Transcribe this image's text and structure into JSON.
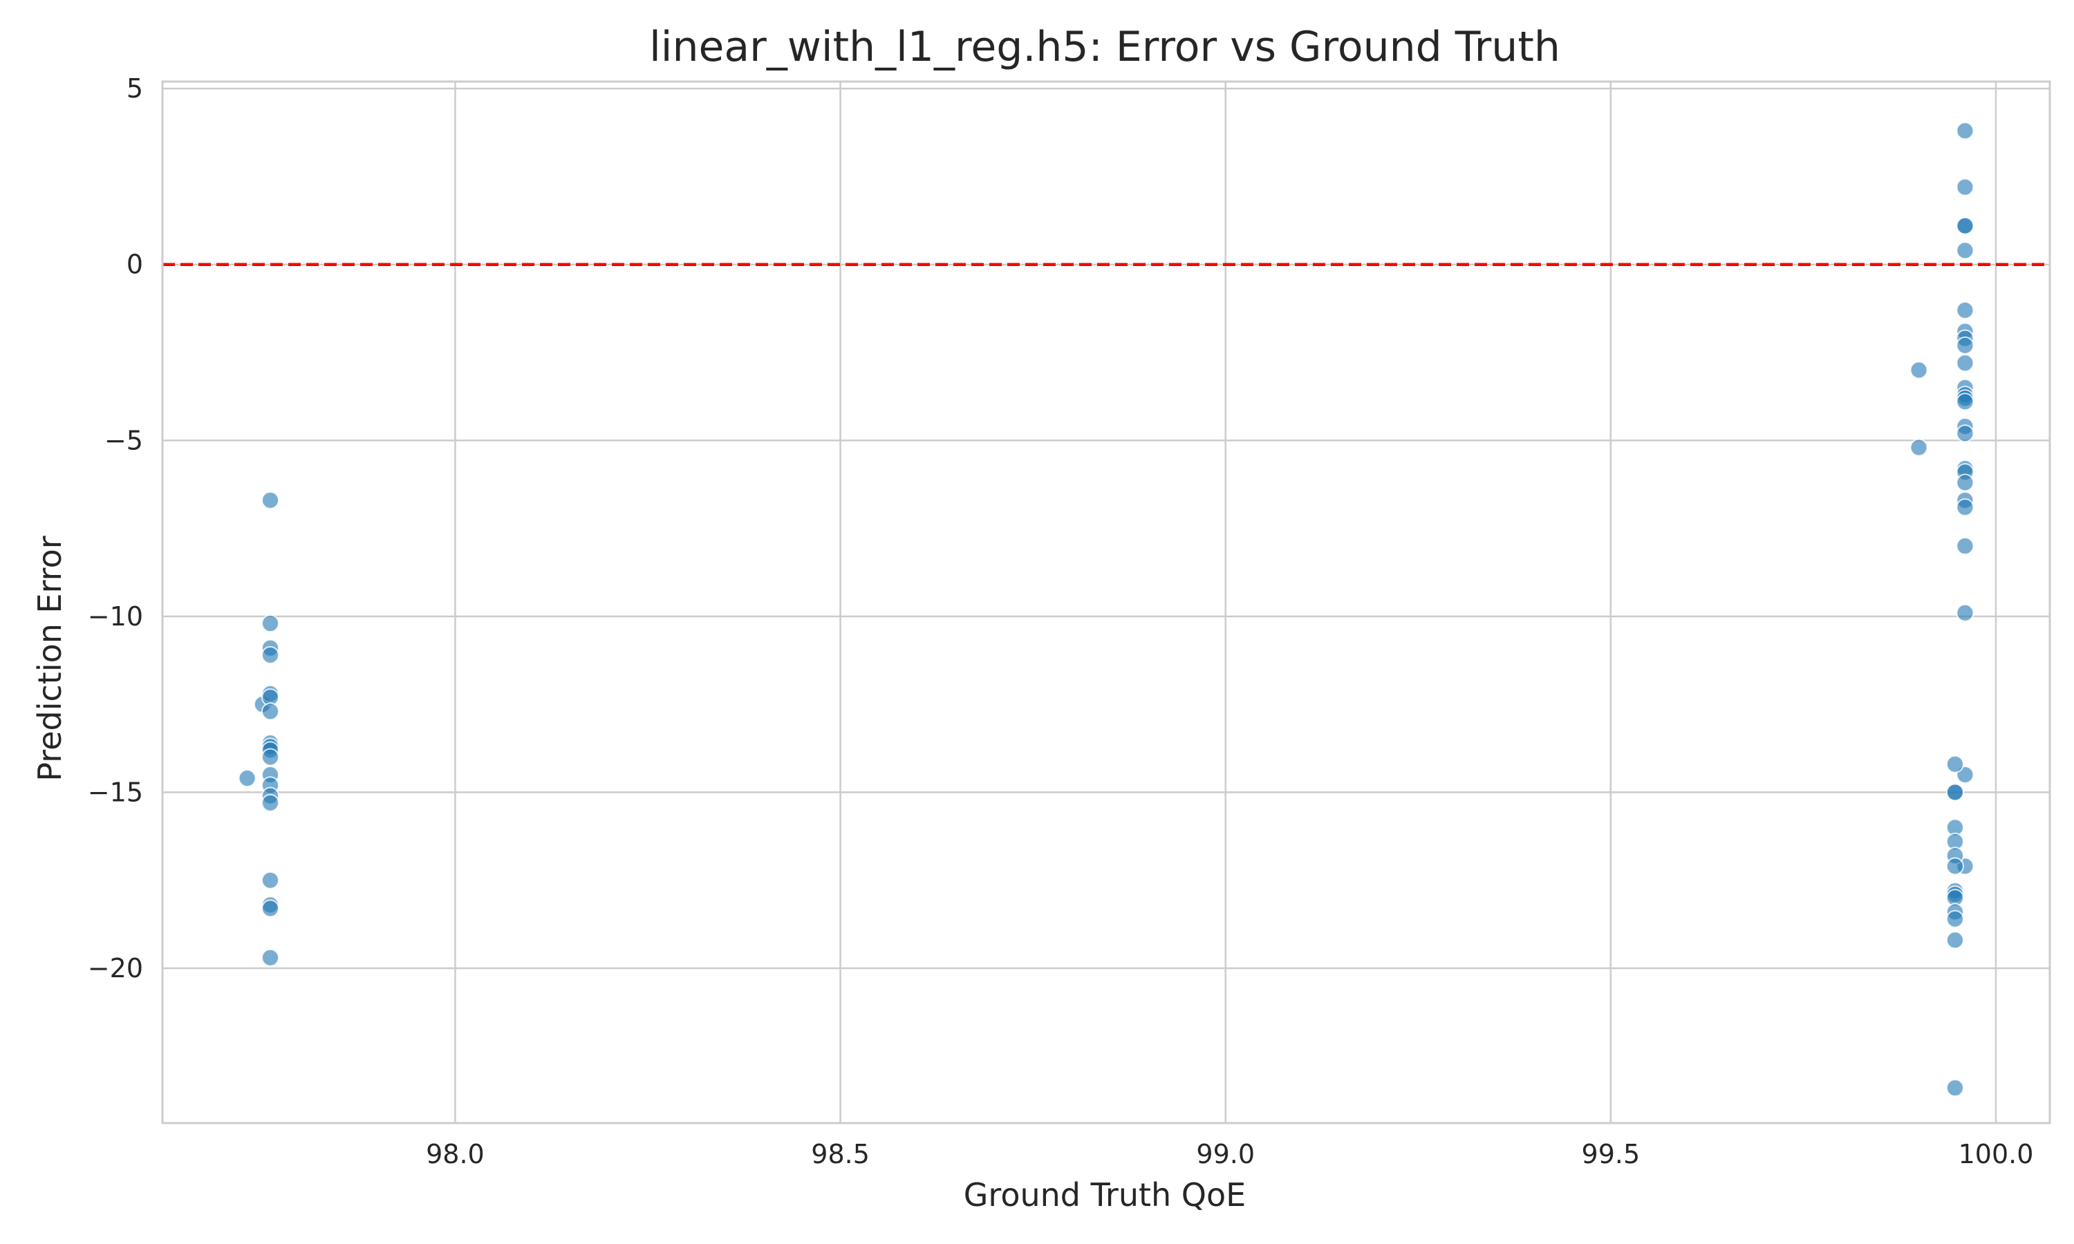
{
  "chart_data": {
    "type": "scatter",
    "title": "linear_with_l1_reg.h5: Error vs Ground Truth",
    "xlabel": "Ground Truth QoE",
    "ylabel": "Prediction Error",
    "xlim": [
      97.62,
      100.07
    ],
    "ylim": [
      -24.4,
      5.2
    ],
    "x_ticks": [
      98.0,
      98.5,
      99.0,
      99.5,
      100.0
    ],
    "x_tick_labels": [
      "98.0",
      "98.5",
      "99.0",
      "99.5",
      "100.0"
    ],
    "y_ticks": [
      5,
      0,
      -5,
      -10,
      -15,
      -20
    ],
    "y_tick_labels": [
      "5",
      "0",
      "−5",
      "−10",
      "−15",
      "−20"
    ],
    "grid": true,
    "reference_line": {
      "y": 0,
      "style": "dashed",
      "color": "#ff0000"
    },
    "marker_color": "#1f77b4",
    "series": [
      {
        "points": [
          [
            97.73,
            -14.6
          ],
          [
            97.75,
            -12.5
          ],
          [
            97.76,
            -6.7
          ],
          [
            97.76,
            -10.2
          ],
          [
            97.76,
            -10.9
          ],
          [
            97.76,
            -11.1
          ],
          [
            97.76,
            -12.2
          ],
          [
            97.76,
            -12.3
          ],
          [
            97.76,
            -12.7
          ],
          [
            97.76,
            -13.6
          ],
          [
            97.76,
            -13.7
          ],
          [
            97.76,
            -13.8
          ],
          [
            97.76,
            -14.0
          ],
          [
            97.76,
            -14.5
          ],
          [
            97.76,
            -14.8
          ],
          [
            97.76,
            -15.1
          ],
          [
            97.76,
            -15.3
          ],
          [
            97.76,
            -17.5
          ],
          [
            97.76,
            -18.2
          ],
          [
            97.76,
            -18.3
          ],
          [
            97.76,
            -19.7
          ],
          [
            99.9,
            -3.0
          ],
          [
            99.9,
            -5.2
          ],
          [
            99.96,
            3.8
          ],
          [
            99.96,
            2.2
          ],
          [
            99.96,
            1.1
          ],
          [
            99.96,
            1.1
          ],
          [
            99.96,
            0.4
          ],
          [
            99.96,
            -1.3
          ],
          [
            99.96,
            -1.9
          ],
          [
            99.96,
            -2.1
          ],
          [
            99.96,
            -2.3
          ],
          [
            99.96,
            -2.8
          ],
          [
            99.96,
            -3.5
          ],
          [
            99.96,
            -3.7
          ],
          [
            99.96,
            -3.8
          ],
          [
            99.96,
            -3.9
          ],
          [
            99.96,
            -4.6
          ],
          [
            99.96,
            -4.8
          ],
          [
            99.96,
            -5.8
          ],
          [
            99.96,
            -5.9
          ],
          [
            99.96,
            -6.2
          ],
          [
            99.96,
            -6.7
          ],
          [
            99.96,
            -6.9
          ],
          [
            99.96,
            -8.0
          ],
          [
            99.96,
            -9.9
          ],
          [
            99.96,
            -14.5
          ],
          [
            99.96,
            -17.1
          ],
          [
            99.947,
            -14.2
          ],
          [
            99.947,
            -15.0
          ],
          [
            99.947,
            -15.0
          ],
          [
            99.947,
            -16.0
          ],
          [
            99.947,
            -16.4
          ],
          [
            99.947,
            -16.8
          ],
          [
            99.947,
            -17.1
          ],
          [
            99.947,
            -17.8
          ],
          [
            99.947,
            -17.9
          ],
          [
            99.947,
            -18.0
          ],
          [
            99.947,
            -18.4
          ],
          [
            99.947,
            -18.6
          ],
          [
            99.947,
            -19.2
          ],
          [
            99.947,
            -23.4
          ]
        ]
      }
    ]
  }
}
